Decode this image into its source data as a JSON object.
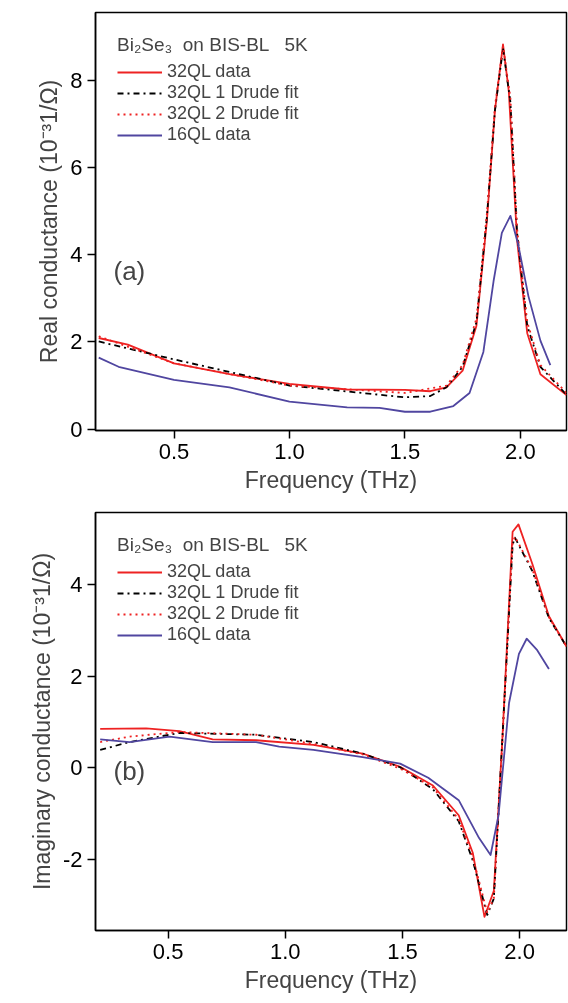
{
  "chart_data": [
    {
      "type": "line",
      "xlabel": "Frequency (THz)",
      "ylabel": "Real conductance (10⁻³1/Ω)",
      "legend_title": "Bi₂Se₃  on BIS-BL   5K",
      "annotations": [
        "(a)"
      ],
      "xlim": [
        0.16,
        2.2
      ],
      "ylim": [
        -0.03,
        9.55
      ],
      "xticks": [
        {
          "value": 0.5,
          "label": "0.5"
        },
        {
          "value": 1.0,
          "label": "1.0"
        },
        {
          "value": 1.5,
          "label": "1.5"
        },
        {
          "value": 2.0,
          "label": "2.0"
        }
      ],
      "yticks": [
        0,
        2,
        4,
        6,
        8
      ],
      "grid": false,
      "legend": "top left",
      "series": [
        {
          "name": "32QL data",
          "color": "#ee2222",
          "line_style": "solid",
          "x": [
            0.174,
            0.3,
            0.5,
            0.74,
            1.0,
            1.25,
            1.5,
            1.61,
            1.68,
            1.75,
            1.81,
            1.855,
            1.89,
            1.925,
            1.95,
            1.986,
            2.03,
            2.087,
            2.2
          ],
          "values": [
            2.09,
            1.94,
            1.51,
            1.26,
            1.04,
            0.91,
            0.9,
            0.87,
            0.96,
            1.34,
            2.37,
            4.76,
            7.3,
            8.82,
            7.75,
            4.33,
            2.2,
            1.26,
            0.78
          ]
        },
        {
          "name": "32QL 1 Drude fit",
          "color": "#000000",
          "line_style": "dashdot",
          "x": [
            0.174,
            0.5,
            1.0,
            1.5,
            1.61,
            1.68,
            1.75,
            1.81,
            1.855,
            1.89,
            1.925,
            1.957,
            1.986,
            2.03,
            2.087,
            2.2
          ],
          "values": [
            2.01,
            1.6,
            1.0,
            0.73,
            0.76,
            0.96,
            1.43,
            2.45,
            4.85,
            7.3,
            8.73,
            7.5,
            4.5,
            2.37,
            1.43,
            0.79
          ]
        },
        {
          "name": "32QL 2 Drude fit",
          "color": "#ee2222",
          "line_style": "dotted",
          "x": [
            0.174,
            0.5,
            1.0,
            1.5,
            1.68,
            1.75,
            1.81,
            1.855,
            1.89,
            1.925,
            1.957,
            1.986,
            2.03,
            2.087,
            2.2
          ],
          "values": [
            2.13,
            1.51,
            1.0,
            0.83,
            1.0,
            1.47,
            2.54,
            4.93,
            7.4,
            8.78,
            7.6,
            4.6,
            2.45,
            1.47,
            0.83
          ]
        },
        {
          "name": "16QL data",
          "color": "#5046a0",
          "line_style": "solid",
          "x": [
            0.174,
            0.26,
            0.5,
            0.74,
            1.0,
            1.25,
            1.39,
            1.5,
            1.61,
            1.71,
            1.78,
            1.84,
            1.884,
            1.92,
            1.957,
            1.99,
            2.035,
            2.087,
            2.13
          ],
          "values": [
            1.64,
            1.43,
            1.13,
            0.96,
            0.63,
            0.5,
            0.49,
            0.4,
            0.4,
            0.53,
            0.83,
            1.77,
            3.39,
            4.5,
            4.89,
            4.25,
            3.05,
            2.03,
            1.47
          ]
        }
      ]
    },
    {
      "type": "line",
      "xlabel": "Frequency (THz)",
      "ylabel": "Imaginary conductance (10⁻³1/Ω)",
      "legend_title": "Bi₂Se₃  on BIS-BL   5K",
      "annotations": [
        "(b)"
      ],
      "xlim": [
        0.19,
        2.2
      ],
      "ylim": [
        -3.56,
        5.58
      ],
      "xticks": [
        {
          "value": 0.5,
          "label": "0.5"
        },
        {
          "value": 1.0,
          "label": "1.0"
        },
        {
          "value": 1.5,
          "label": "1.5"
        },
        {
          "value": 2.0,
          "label": "2.0"
        }
      ],
      "yticks": [
        -2,
        0,
        2,
        4
      ],
      "grid": false,
      "legend": "top left",
      "series": [
        {
          "name": "32QL data",
          "color": "#ee2222",
          "line_style": "solid",
          "x": [
            0.21,
            0.406,
            0.548,
            0.69,
            0.875,
            1.12,
            1.33,
            1.49,
            1.63,
            1.74,
            1.8,
            1.85,
            1.89,
            1.926,
            1.97,
            1.995,
            2.054,
            2.125,
            2.2
          ],
          "values": [
            0.85,
            0.86,
            0.8,
            0.62,
            0.6,
            0.5,
            0.31,
            0.02,
            -0.39,
            -1.04,
            -1.86,
            -3.26,
            -2.69,
            0.6,
            5.16,
            5.32,
            4.46,
            3.31,
            2.65
          ]
        },
        {
          "name": "32QL 1 Drude fit",
          "color": "#000000",
          "line_style": "dashdot",
          "x": [
            0.21,
            0.335,
            0.548,
            0.875,
            1.12,
            1.33,
            1.49,
            1.63,
            1.74,
            1.8,
            1.862,
            1.89,
            1.926,
            1.97,
            1.98,
            2.054,
            2.125,
            2.2
          ],
          "values": [
            0.39,
            0.56,
            0.76,
            0.72,
            0.56,
            0.31,
            0.01,
            -0.47,
            -1.17,
            -2.03,
            -3.22,
            -2.86,
            0.6,
            4.87,
            5.03,
            4.3,
            3.27,
            2.65
          ]
        },
        {
          "name": "32QL 2 Drude fit",
          "color": "#ee2222",
          "line_style": "dotted",
          "x": [
            0.21,
            0.335,
            0.548,
            0.875,
            1.12,
            1.33,
            1.49,
            1.63,
            1.74,
            1.8,
            1.862,
            1.89,
            1.926,
            1.97,
            1.98,
            2.054,
            2.125,
            2.2
          ],
          "values": [
            0.56,
            0.68,
            0.78,
            0.72,
            0.52,
            0.29,
            -0.02,
            -0.43,
            -1.13,
            -1.95,
            -3.18,
            -2.86,
            0.52,
            4.91,
            5.05,
            4.34,
            3.29,
            2.65
          ]
        },
        {
          "name": "16QL data",
          "color": "#5046a0",
          "line_style": "solid",
          "x": [
            0.21,
            0.335,
            0.506,
            0.69,
            0.875,
            0.974,
            1.12,
            1.33,
            1.49,
            1.61,
            1.74,
            1.827,
            1.876,
            1.91,
            1.955,
            1.997,
            2.03,
            2.075,
            2.125
          ],
          "values": [
            0.62,
            0.56,
            0.68,
            0.56,
            0.56,
            0.46,
            0.39,
            0.23,
            0.09,
            -0.22,
            -0.71,
            -1.54,
            -1.91,
            -1.04,
            1.42,
            2.49,
            2.82,
            2.57,
            2.16
          ]
        }
      ]
    }
  ]
}
